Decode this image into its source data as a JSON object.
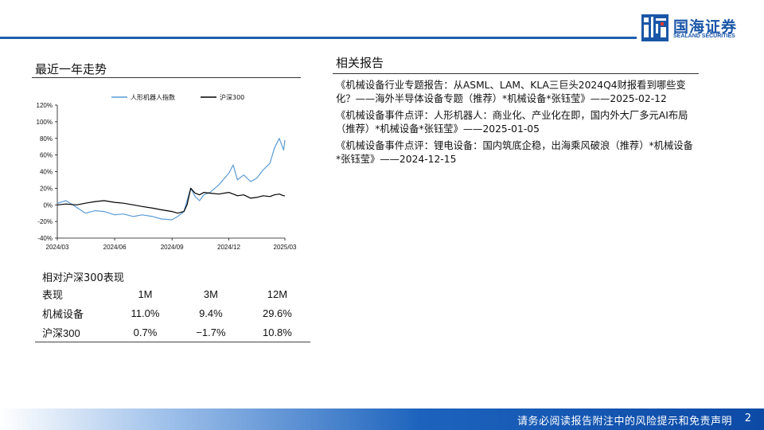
{
  "brand": {
    "name_cn": "国海证券",
    "name_en": "SEALAND SECURITIES",
    "color": "#1a56a8"
  },
  "left": {
    "chart_title": "最近一年走势"
  },
  "chart_data": {
    "type": "line",
    "title": "",
    "xlabel": "",
    "ylabel": "",
    "ylim": [
      -40,
      120
    ],
    "yticks": [
      "120%",
      "100%",
      "80%",
      "60%",
      "40%",
      "20%",
      "0%",
      "-20%",
      "-40%"
    ],
    "xticks": [
      "2024/03",
      "2024/06",
      "2024/09",
      "2024/12",
      "2025/03"
    ],
    "legend_position": "top",
    "grid": false,
    "series": [
      {
        "name": "人形机器人指数",
        "color": "#5b9bd5",
        "x": [
          "2024/03/01",
          "2024/03/15",
          "2024/04/01",
          "2024/04/15",
          "2024/05/01",
          "2024/05/15",
          "2024/06/01",
          "2024/06/15",
          "2024/07/01",
          "2024/07/15",
          "2024/08/01",
          "2024/08/15",
          "2024/09/01",
          "2024/09/10",
          "2024/09/20",
          "2024/09/25",
          "2024/10/01",
          "2024/10/08",
          "2024/10/15",
          "2024/10/22",
          "2024/11/01",
          "2024/11/15",
          "2024/12/01",
          "2024/12/08",
          "2024/12/15",
          "2024/12/25",
          "2025/01/05",
          "2025/01/15",
          "2025/01/25",
          "2025/02/05",
          "2025/02/12",
          "2025/02/20",
          "2025/02/27",
          "2025/03/01"
        ],
        "values": [
          2,
          5,
          -3,
          -10,
          -7,
          -8,
          -12,
          -11,
          -14,
          -12,
          -14,
          -17,
          -18,
          -14,
          -8,
          5,
          20,
          10,
          5,
          12,
          15,
          24,
          38,
          48,
          30,
          36,
          28,
          32,
          42,
          50,
          68,
          80,
          66,
          78
        ]
      },
      {
        "name": "沪深300",
        "color": "#000000",
        "x": [
          "2024/03/01",
          "2024/03/15",
          "2024/04/01",
          "2024/04/15",
          "2024/05/01",
          "2024/05/15",
          "2024/06/01",
          "2024/06/15",
          "2024/07/01",
          "2024/07/15",
          "2024/08/01",
          "2024/08/15",
          "2024/09/01",
          "2024/09/10",
          "2024/09/20",
          "2024/09/25",
          "2024/10/01",
          "2024/10/08",
          "2024/10/15",
          "2024/10/22",
          "2024/11/01",
          "2024/11/15",
          "2024/12/01",
          "2024/12/08",
          "2024/12/15",
          "2024/12/25",
          "2025/01/05",
          "2025/01/15",
          "2025/01/25",
          "2025/02/05",
          "2025/02/12",
          "2025/02/20",
          "2025/02/27",
          "2025/03/01"
        ],
        "values": [
          0,
          1,
          0,
          2,
          4,
          5,
          3,
          2,
          0,
          -2,
          -4,
          -6,
          -8,
          -10,
          -8,
          0,
          20,
          14,
          12,
          15,
          14,
          13,
          15,
          13,
          11,
          12,
          8,
          9,
          11,
          10,
          12,
          13,
          11,
          11
        ]
      }
    ]
  },
  "performance": {
    "title": "相对沪深300表现",
    "headers": [
      "表现",
      "1M",
      "3M",
      "12M"
    ],
    "rows": [
      [
        "机械设备",
        "11.0%",
        "9.4%",
        "29.6%"
      ],
      [
        "沪深300",
        "0.7%",
        "−1.7%",
        "10.8%"
      ]
    ]
  },
  "right": {
    "title": "相关报告",
    "reports": [
      "《机械设备行业专题报告：从ASML、LAM、KLA三巨头2024Q4财报看到哪些变化？——海外半导体设备专题（推荐）*机械设备*张钰莹》——2025-02-12",
      "《机械设备事件点评：人形机器人：商业化、产业化在即，国内外大厂多元AI布局（推荐）*机械设备*张钰莹》——2025-01-05",
      "《机械设备事件点评：锂电设备：国内筑底企稳，出海乘风破浪（推荐）*机械设备*张钰莹》——2024-12-15"
    ]
  },
  "footer": {
    "disclaimer": "请务必阅读报告附注中的风险提示和免责声明",
    "page": "2"
  }
}
